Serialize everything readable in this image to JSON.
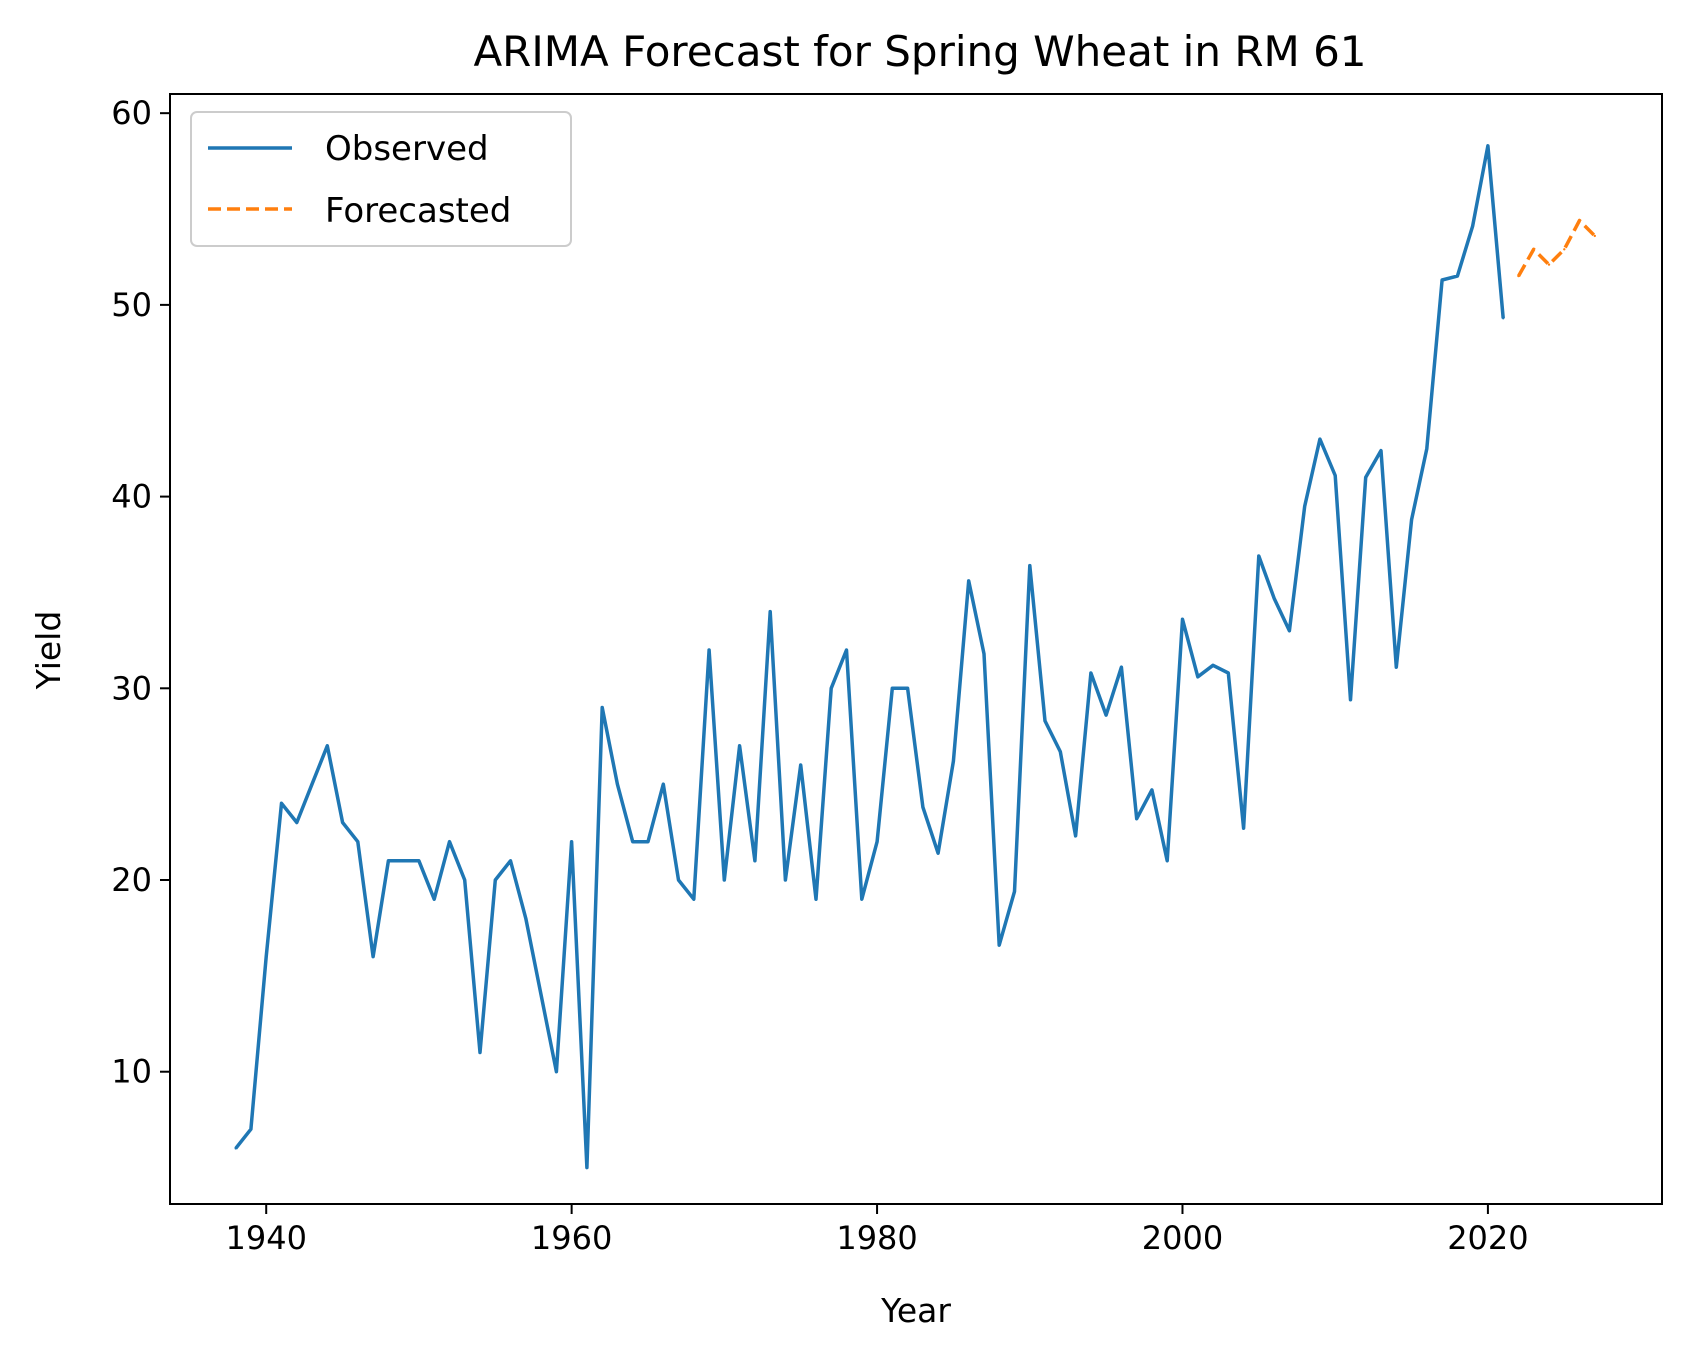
{
  "chart_data": {
    "type": "line",
    "title": "ARIMA Forecast for Spring Wheat in RM 61",
    "xlabel": "Year",
    "ylabel": "Yield",
    "xlim": [
      1933.7,
      2031.4
    ],
    "ylim": [
      3.1,
      61.0
    ],
    "xticks": [
      1940,
      1960,
      1980,
      2000,
      2020
    ],
    "yticks": [
      10,
      20,
      30,
      40,
      50,
      60
    ],
    "xtick_labels": [
      "1940",
      "1960",
      "1980",
      "2000",
      "2020"
    ],
    "ytick_labels": [
      "10",
      "20",
      "30",
      "40",
      "50",
      "60"
    ],
    "grid": false,
    "legend": {
      "placement": "top-left"
    },
    "series": [
      {
        "name": "Observed",
        "style": "solid",
        "color": "#1f77b4",
        "x": [
          1938,
          1939,
          1940,
          1941,
          1942,
          1943,
          1944,
          1945,
          1946,
          1947,
          1948,
          1949,
          1950,
          1951,
          1952,
          1953,
          1954,
          1955,
          1956,
          1957,
          1958,
          1959,
          1960,
          1961,
          1962,
          1963,
          1964,
          1965,
          1966,
          1967,
          1968,
          1969,
          1970,
          1971,
          1972,
          1973,
          1974,
          1975,
          1976,
          1977,
          1978,
          1979,
          1980,
          1981,
          1982,
          1983,
          1984,
          1985,
          1986,
          1987,
          1988,
          1989,
          1990,
          1991,
          1992,
          1993,
          1994,
          1995,
          1996,
          1997,
          1998,
          1999,
          2000,
          2001,
          2002,
          2003,
          2004,
          2005,
          2006,
          2007,
          2008,
          2009,
          2010,
          2011,
          2012,
          2013,
          2014,
          2015,
          2016,
          2017,
          2018,
          2019,
          2020,
          2021
        ],
        "y": [
          6,
          7,
          16,
          24,
          23,
          25,
          27,
          23,
          22,
          16,
          21,
          21,
          21,
          19,
          22,
          20,
          11,
          20,
          21,
          18,
          14,
          10,
          22,
          5,
          29,
          25,
          22,
          22,
          25,
          20,
          19,
          32,
          20,
          27,
          21,
          34,
          20,
          26,
          19,
          30,
          32,
          19,
          22,
          30,
          30,
          23.8,
          21.4,
          26.2,
          35.6,
          31.8,
          16.6,
          19.4,
          36.4,
          28.3,
          26.7,
          22.3,
          30.8,
          28.6,
          31.1,
          23.2,
          24.7,
          21,
          33.6,
          30.6,
          31.2,
          30.8,
          22.7,
          36.9,
          34.7,
          33,
          39.5,
          43,
          41.1,
          29.4,
          41,
          42.4,
          31.1,
          38.8,
          42.5,
          51.3,
          51.5,
          54.1,
          58.3,
          49.3
        ]
      },
      {
        "name": "Forecasted",
        "style": "dashed",
        "color": "#ff7f0e",
        "x": [
          2022,
          2023,
          2024,
          2025,
          2026,
          2027
        ],
        "y": [
          51.5,
          52.9,
          52.1,
          52.9,
          54.4,
          53.6
        ]
      }
    ]
  }
}
